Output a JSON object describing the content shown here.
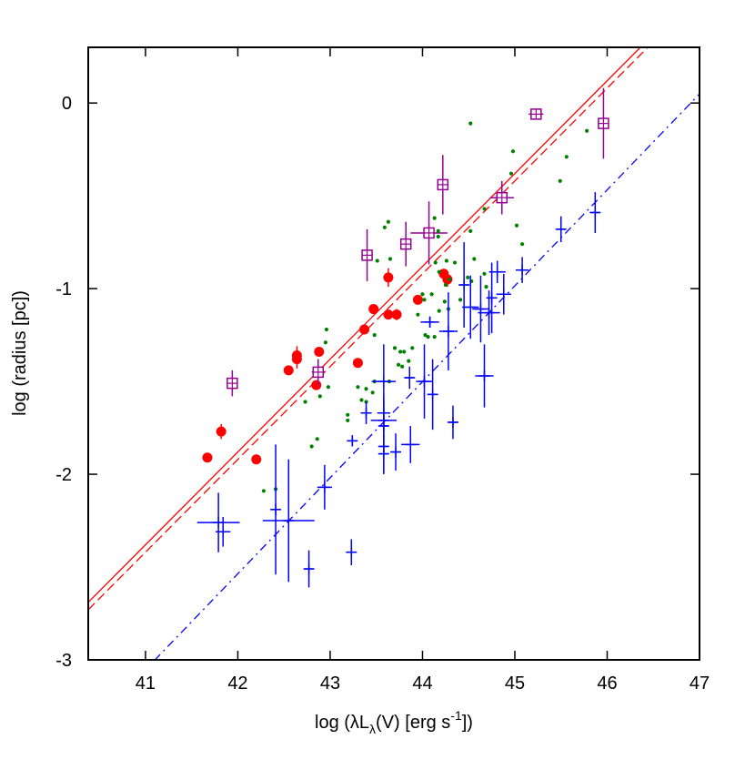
{
  "chart_data": {
    "type": "scatter",
    "xlabel": {
      "prefix": "log (λL",
      "sub": "λ",
      "mid": "(V) [erg s",
      "sup": "-1",
      "suffix": "])"
    },
    "ylabel": "log (radius [pc])",
    "xlim": [
      40.38,
      47
    ],
    "ylim": [
      -3,
      0.3
    ],
    "xticks": [
      41,
      42,
      43,
      44,
      45,
      46,
      47
    ],
    "yticks": [
      0,
      -1,
      -2,
      -3
    ],
    "grid": false,
    "legend": "none",
    "colors": {
      "red": "#ff0000",
      "purple": "#930093",
      "green": "#008000",
      "blue": "#0000ff"
    },
    "lines": [
      {
        "style": "solid",
        "color": "#ff0000",
        "slope": 0.5,
        "intercept": -22.88
      },
      {
        "style": "dashed",
        "color": "#ff0000",
        "slope": 0.5,
        "intercept": -22.92
      },
      {
        "style": "dash-dot",
        "color": "#0000ff",
        "slope": 0.517,
        "intercept": -24.25
      }
    ],
    "series": [
      {
        "marker": "filled-circle",
        "color": "#ff0000",
        "points": [
          [
            41.67,
            -1.91,
            0,
            0
          ],
          [
            41.82,
            -1.77,
            0,
            0.04
          ],
          [
            42.2,
            -1.92,
            0,
            0
          ],
          [
            42.55,
            -1.44,
            0,
            0
          ],
          [
            42.64,
            -1.36,
            0,
            0.05
          ],
          [
            42.64,
            -1.38,
            0,
            0.05
          ],
          [
            42.85,
            -1.52,
            0,
            0
          ],
          [
            42.88,
            -1.34,
            0,
            0
          ],
          [
            43.3,
            -1.4,
            0,
            0
          ],
          [
            43.37,
            -1.22,
            0,
            0
          ],
          [
            43.47,
            -1.11,
            0,
            0
          ],
          [
            43.63,
            -1.14,
            0,
            0
          ],
          [
            43.72,
            -1.14,
            0,
            0.03
          ],
          [
            43.63,
            -0.94,
            0,
            0.05
          ],
          [
            43.95,
            -1.06,
            0,
            0
          ],
          [
            44.23,
            -0.92,
            0,
            0
          ],
          [
            44.27,
            -0.95,
            0,
            0.04
          ]
        ]
      },
      {
        "marker": "boxed-plus",
        "color": "#930093",
        "points": [
          [
            41.94,
            -1.51,
            0.05,
            0.07
          ],
          [
            42.87,
            -1.45,
            0.07,
            0.07
          ],
          [
            43.4,
            -0.82,
            0.05,
            0.14
          ],
          [
            43.82,
            -0.76,
            0.05,
            0.12
          ],
          [
            44.07,
            -0.7,
            0.2,
            0.17
          ],
          [
            44.22,
            -0.44,
            0.03,
            0.16
          ],
          [
            44.86,
            -0.51,
            0.13,
            0.09
          ],
          [
            45.23,
            -0.06,
            0.08,
            0.02
          ],
          [
            45.96,
            -0.11,
            0.03,
            0.19
          ]
        ]
      },
      {
        "marker": "dot",
        "color": "#008000",
        "points": [
          [
            44.52,
            -0.11
          ],
          [
            44.98,
            -0.26
          ],
          [
            44.96,
            -0.38
          ],
          [
            45.78,
            -0.15
          ],
          [
            45.56,
            -0.29
          ],
          [
            45.49,
            -0.42
          ],
          [
            45.02,
            -0.66
          ],
          [
            45.08,
            -0.76
          ],
          [
            44.67,
            -0.57
          ],
          [
            44.52,
            -0.69
          ],
          [
            44.13,
            -0.62
          ],
          [
            44.17,
            -0.69
          ],
          [
            44.17,
            -0.72
          ],
          [
            43.63,
            -0.64
          ],
          [
            43.59,
            -0.67
          ],
          [
            43.51,
            -0.85
          ],
          [
            43.65,
            -0.84
          ],
          [
            44.14,
            -0.86
          ],
          [
            44.26,
            -0.85
          ],
          [
            44.35,
            -0.86
          ],
          [
            44.56,
            -0.84
          ],
          [
            44.67,
            -0.92
          ],
          [
            44.18,
            -0.91
          ],
          [
            44.49,
            -0.94
          ],
          [
            44.53,
            -0.96
          ],
          [
            44.69,
            -0.99
          ],
          [
            44.29,
            -0.95
          ],
          [
            44.25,
            -0.98
          ],
          [
            44.0,
            -1.03
          ],
          [
            44.1,
            -1.03
          ],
          [
            44.02,
            -1.06
          ],
          [
            44.41,
            -1.06
          ],
          [
            44.24,
            -1.07
          ],
          [
            44.18,
            -1.12
          ],
          [
            44.28,
            -1.11
          ],
          [
            43.95,
            -1.14
          ],
          [
            43.48,
            -1.25
          ],
          [
            44.03,
            -1.25
          ],
          [
            44.06,
            -1.26
          ],
          [
            44.13,
            -1.26
          ],
          [
            43.7,
            -1.32
          ],
          [
            43.76,
            -1.34
          ],
          [
            43.8,
            -1.34
          ],
          [
            43.89,
            -1.32
          ],
          [
            43.74,
            -1.41
          ],
          [
            43.78,
            -1.42
          ],
          [
            43.85,
            -1.39
          ],
          [
            43.64,
            -1.5
          ],
          [
            42.96,
            -1.22
          ],
          [
            42.95,
            -1.29
          ],
          [
            42.98,
            -1.53
          ],
          [
            42.89,
            -1.58
          ],
          [
            42.73,
            -1.61
          ],
          [
            43.3,
            -1.53
          ],
          [
            43.39,
            -1.54
          ],
          [
            43.46,
            -1.56
          ],
          [
            43.34,
            -1.6
          ],
          [
            43.39,
            -1.61
          ],
          [
            43.19,
            -1.68
          ],
          [
            43.19,
            -1.71
          ],
          [
            42.86,
            -1.81
          ],
          [
            42.8,
            -1.85
          ],
          [
            43.48,
            -1.5
          ],
          [
            42.28,
            -2.09
          ],
          [
            42.41,
            -2.08
          ]
        ]
      },
      {
        "marker": "cross-errorbar",
        "color": "#0000ff",
        "points": [
          [
            41.79,
            -2.26,
            0.23,
            0.16
          ],
          [
            41.84,
            -2.31,
            0.08,
            0.08
          ],
          [
            42.55,
            -2.25,
            0.28,
            0.33
          ],
          [
            42.41,
            -2.19,
            0.05,
            0.35
          ],
          [
            42.94,
            -2.07,
            0.08,
            0.12
          ],
          [
            42.77,
            -2.51,
            0.05,
            0.1
          ],
          [
            43.23,
            -2.42,
            0.05,
            0.07
          ],
          [
            43.24,
            -1.82,
            0.05,
            0.03
          ],
          [
            43.39,
            -1.67,
            0.05,
            0.06
          ],
          [
            43.58,
            -1.71,
            0.14,
            0.1
          ],
          [
            43.58,
            -1.67,
            0.07,
            0.1
          ],
          [
            43.58,
            -1.74,
            0.05,
            0.15
          ],
          [
            43.58,
            -1.85,
            0.05,
            0.15
          ],
          [
            43.58,
            -1.89,
            0.05,
            0.1
          ],
          [
            43.58,
            -1.5,
            0.13,
            0.2
          ],
          [
            43.71,
            -1.88,
            0.05,
            0.1
          ],
          [
            43.87,
            -1.84,
            0.1,
            0.1
          ],
          [
            43.86,
            -1.48,
            0.05,
            0.06
          ],
          [
            44.02,
            -1.5,
            0.09,
            0.2
          ],
          [
            44.11,
            -1.57,
            0.05,
            0.19
          ],
          [
            44.08,
            -1.18,
            0.1,
            0.03
          ],
          [
            44.28,
            -1.23,
            0.1,
            0.21
          ],
          [
            44.33,
            -1.72,
            0.05,
            0.09
          ],
          [
            44.67,
            -1.47,
            0.1,
            0.17
          ],
          [
            44.45,
            -0.98,
            0.05,
            0.23
          ],
          [
            44.52,
            -1.1,
            0.09,
            0.17
          ],
          [
            44.63,
            -1.11,
            0.09,
            0.18
          ],
          [
            44.72,
            -1.13,
            0.12,
            0.12
          ],
          [
            44.75,
            -1.05,
            0.05,
            0.19
          ],
          [
            44.88,
            -1.03,
            0.08,
            0.11
          ],
          [
            44.81,
            -0.91,
            0.09,
            0.06
          ],
          [
            45.08,
            -0.9,
            0.07,
            0.07
          ],
          [
            45.5,
            -0.68,
            0.05,
            0.07
          ],
          [
            45.87,
            -0.59,
            0.05,
            0.11
          ]
        ]
      }
    ]
  }
}
